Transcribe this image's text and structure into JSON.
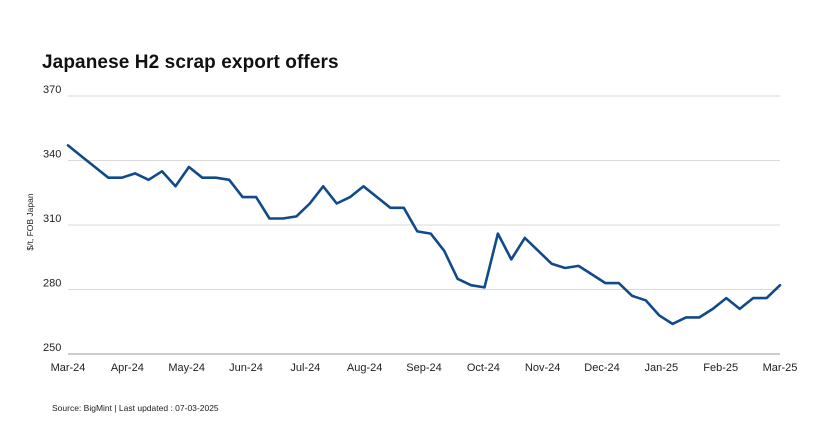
{
  "colors": {
    "line": "#114a8a",
    "grid": "#d9d9d9",
    "axis": "#999999"
  },
  "chart_data": {
    "type": "line",
    "title": "Japanese H2 scrap export offers",
    "ylabel": "$/t, FOB Japan",
    "xlabel": "",
    "ylim": [
      250,
      370
    ],
    "yticks": [
      250,
      280,
      310,
      340,
      370
    ],
    "grid": true,
    "xticks": [
      "Mar-24",
      "Apr-24",
      "May-24",
      "Jun-24",
      "Jul-24",
      "Aug-24",
      "Sep-24",
      "Oct-24",
      "Nov-24",
      "Dec-24",
      "Jan-25",
      "Feb-25",
      "Mar-25"
    ],
    "series": [
      {
        "values": [
          347,
          342,
          337,
          332,
          332,
          334,
          331,
          335,
          328,
          337,
          332,
          332,
          331,
          323,
          323,
          313,
          313,
          314,
          320,
          328,
          320,
          323,
          328,
          323,
          318,
          318,
          307,
          306,
          298,
          285,
          282,
          281,
          306,
          294,
          304,
          298,
          292,
          290,
          291,
          287,
          283,
          283,
          277,
          275,
          268,
          264,
          267,
          267,
          271,
          276,
          271,
          276,
          276,
          282
        ]
      }
    ]
  },
  "source_note": "Source: BigMint  | Last updated : 07-03-2025"
}
